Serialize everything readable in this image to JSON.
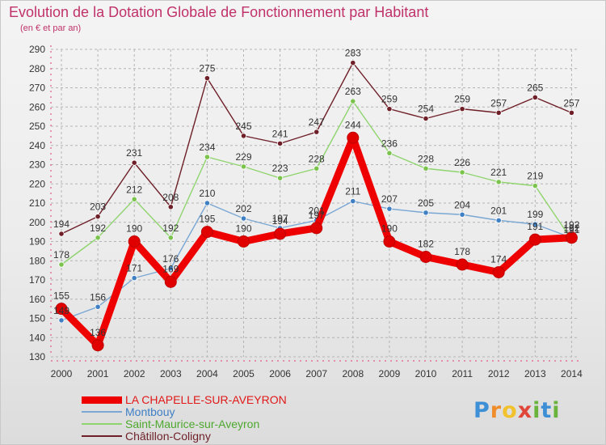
{
  "chart_data": {
    "type": "line",
    "title": "Evolution de la Dotation Globale de Fonctionnement par Habitant",
    "subtitle": "(en € et par an)",
    "categories": [
      "2000",
      "2001",
      "2002",
      "2003",
      "2004",
      "2005",
      "2006",
      "2007",
      "2008",
      "2009",
      "2010",
      "2011",
      "2012",
      "2013",
      "2014"
    ],
    "ylim": [
      130,
      290
    ],
    "yticks": [
      130,
      140,
      150,
      160,
      170,
      180,
      190,
      200,
      210,
      220,
      230,
      240,
      250,
      260,
      270,
      280,
      290
    ],
    "grid": true,
    "series": [
      {
        "name": "Châtillon-Coligny",
        "color": "#6e1f28",
        "point_color": "#6e1f28",
        "values": [
          194,
          203,
          231,
          208,
          275,
          245,
          241,
          247,
          283,
          259,
          254,
          259,
          257,
          265,
          257
        ],
        "labels": [
          "194",
          "203",
          "231",
          "208",
          "275",
          "245",
          "241",
          "247",
          "283",
          "259",
          "254",
          "259",
          "257",
          "265",
          "257"
        ]
      },
      {
        "name": "Saint-Maurice-sur-Aveyron",
        "color": "#8fd46e",
        "point_color": "#7cc34e",
        "values": [
          178,
          192,
          212,
          192,
          234,
          229,
          223,
          228,
          263,
          236,
          228,
          226,
          221,
          219,
          191
        ],
        "labels": [
          "178",
          "192",
          "212",
          "192",
          "234",
          "229",
          "223",
          "228",
          "263",
          "236",
          "228",
          "226",
          "221",
          "219",
          "191"
        ]
      },
      {
        "name": "Montbouy",
        "color": "#7aa7d4",
        "point_color": "#3f7fc4",
        "values": [
          149,
          156,
          171,
          176,
          210,
          202,
          197,
          201,
          211,
          207,
          205,
          204,
          201,
          199,
          192
        ],
        "labels": [
          "149",
          "156",
          "171",
          "176",
          "210",
          "202",
          "197",
          "201",
          "211",
          "207",
          "205",
          "204",
          "201",
          "199",
          "192"
        ]
      },
      {
        "name": "LA CHAPELLE-SUR-AVEYRON",
        "color": "#ef0000",
        "point_color": "#e00000",
        "values": [
          155,
          136,
          190,
          169,
          195,
          190,
          194,
          197,
          244,
          190,
          182,
          178,
          174,
          191,
          192
        ],
        "labels": [
          "155",
          "136",
          "190",
          "169",
          "195",
          "190",
          "194",
          "197",
          "244",
          "190",
          "182",
          "178",
          "174",
          "191",
          "192"
        ]
      }
    ],
    "legend": [
      {
        "name": "LA CHAPELLE-SUR-AVEYRON",
        "color": "#ef0000",
        "text_color": "#e01818"
      },
      {
        "name": "Montbouy",
        "color": "#7aa7d4",
        "text_color": "#3f7fc4"
      },
      {
        "name": "Saint-Maurice-sur-Aveyron",
        "color": "#8fd46e",
        "text_color": "#4ea82e"
      },
      {
        "name": "Châtillon-Coligny",
        "color": "#6e1f28",
        "text_color": "#6e1f28"
      }
    ]
  },
  "logo": {
    "p": "P",
    "r": "r",
    "o": "o",
    "x": "x",
    "i": "i",
    "t": "t",
    "i2": "i"
  }
}
